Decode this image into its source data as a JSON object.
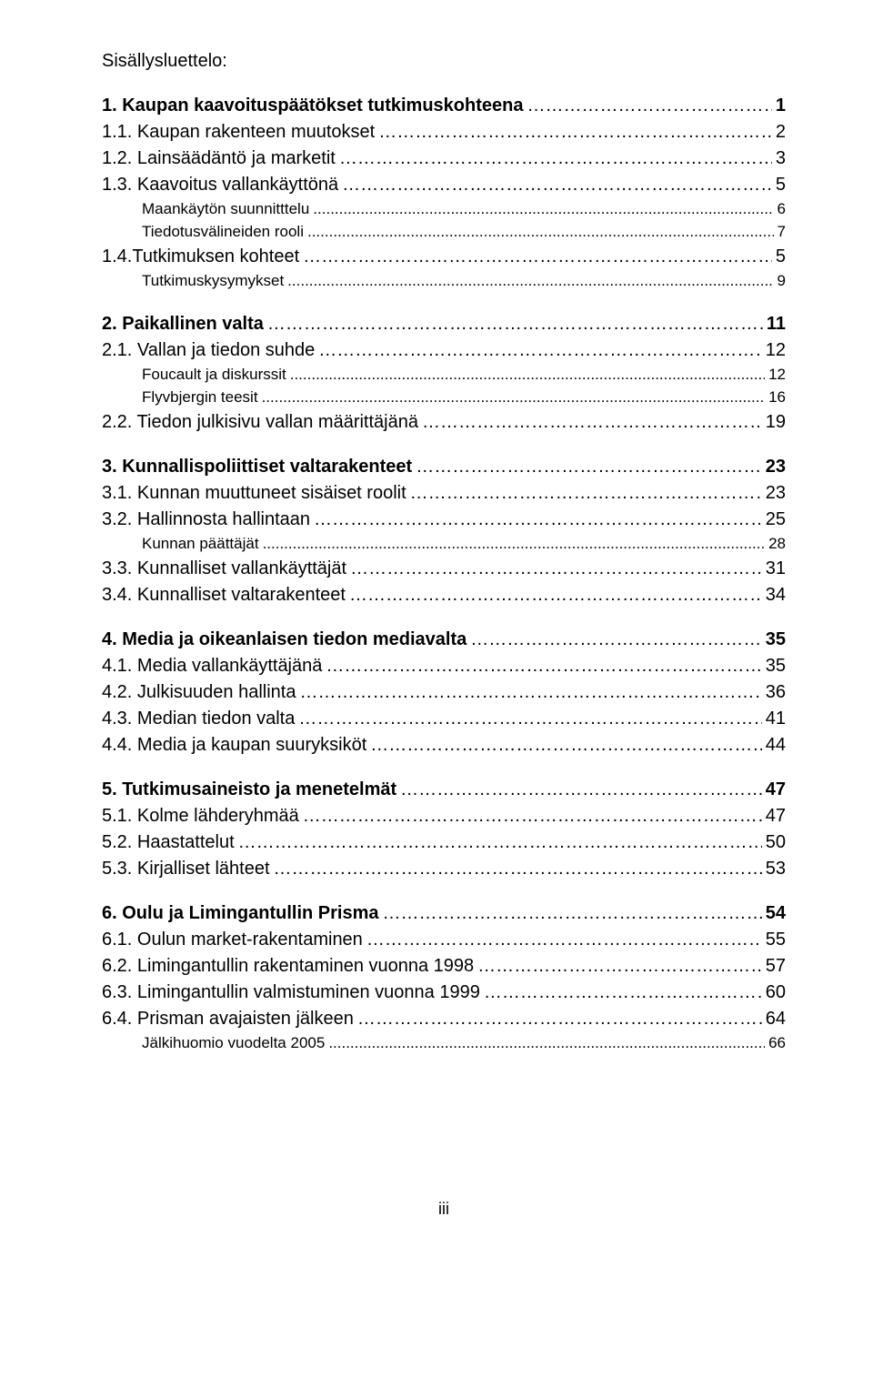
{
  "title": "Sisällysluettelo:",
  "footer": "iii",
  "lines": [
    {
      "label": "1. Kaupan kaavoituspäätökset tutkimuskohteena",
      "page": "1",
      "bold": true,
      "indent": 0,
      "leader": "ellipsis"
    },
    {
      "label": "1.1. Kaupan rakenteen muutokset",
      "page": "2",
      "bold": false,
      "indent": 0,
      "leader": "ellipsis"
    },
    {
      "label": "1.2. Lainsäädäntö ja marketit",
      "page": "3",
      "bold": false,
      "indent": 0,
      "leader": "ellipsis"
    },
    {
      "label": "1.3. Kaavoitus vallankäyttönä",
      "page": "5",
      "bold": false,
      "indent": 0,
      "leader": "ellipsis"
    },
    {
      "label": "Maankäytön suunnitttelu",
      "page": "6",
      "bold": false,
      "indent": 1,
      "sub": true,
      "leader": "dots"
    },
    {
      "label": "Tiedotusvälineiden rooli",
      "page": "7",
      "bold": false,
      "indent": 1,
      "sub": true,
      "leader": "dots"
    },
    {
      "label": "1.4.Tutkimuksen kohteet",
      "page": "5",
      "bold": false,
      "indent": 0,
      "leader": "ellipsis"
    },
    {
      "label": "Tutkimuskysymykset",
      "page": "9",
      "bold": false,
      "indent": 1,
      "sub": true,
      "leader": "dots"
    },
    {
      "gap": true
    },
    {
      "label": "2. Paikallinen valta",
      "page": "11",
      "bold": true,
      "indent": 0,
      "leader": "ellipsis"
    },
    {
      "label": "2.1. Vallan ja tiedon suhde",
      "page": "12",
      "bold": false,
      "indent": 0,
      "leader": "ellipsis"
    },
    {
      "label": "Foucault ja diskurssit",
      "page": "12",
      "bold": false,
      "indent": 1,
      "sub": true,
      "leader": "dots"
    },
    {
      "label": "Flyvbjergin teesit",
      "page": "16",
      "bold": false,
      "indent": 1,
      "sub": true,
      "leader": "dots"
    },
    {
      "label": "2.2. Tiedon julkisivu vallan määrittäjänä",
      "page": "19",
      "bold": false,
      "indent": 0,
      "leader": "ellipsis"
    },
    {
      "gap": true
    },
    {
      "label": "3. Kunnallispoliittiset valtarakenteet",
      "page": "23",
      "bold": true,
      "indent": 0,
      "leader": "ellipsis"
    },
    {
      "label": "3.1. Kunnan muuttuneet sisäiset roolit",
      "page": "23",
      "bold": false,
      "indent": 0,
      "leader": "ellipsis"
    },
    {
      "label": "3.2. Hallinnosta hallintaan",
      "page": "25",
      "bold": false,
      "indent": 0,
      "leader": "ellipsis"
    },
    {
      "label": "Kunnan päättäjät",
      "page": "28",
      "bold": false,
      "indent": 1,
      "sub": true,
      "leader": "dots"
    },
    {
      "label": "3.3. Kunnalliset vallankäyttäjät",
      "page": "31",
      "bold": false,
      "indent": 0,
      "leader": "ellipsis"
    },
    {
      "label": "3.4. Kunnalliset valtarakenteet",
      "page": "34",
      "bold": false,
      "indent": 0,
      "leader": "ellipsis"
    },
    {
      "gap": true
    },
    {
      "label": "4. Media ja oikeanlaisen tiedon mediavalta",
      "page": "35",
      "bold": true,
      "indent": 0,
      "leader": "ellipsis"
    },
    {
      "label": "4.1. Media vallankäyttäjänä",
      "page": "35",
      "bold": false,
      "indent": 0,
      "leader": "ellipsis"
    },
    {
      "label": "4.2. Julkisuuden hallinta",
      "page": "36",
      "bold": false,
      "indent": 0,
      "leader": "ellipsis"
    },
    {
      "label": "4.3. Median tiedon valta",
      "page": "41",
      "bold": false,
      "indent": 0,
      "leader": "ellipsis"
    },
    {
      "label": "4.4. Media ja kaupan suuryksiköt",
      "page": "44",
      "bold": false,
      "indent": 0,
      "leader": "ellipsis"
    },
    {
      "gap": true
    },
    {
      "label": "5. Tutkimusaineisto ja menetelmät",
      "page": "47",
      "bold": true,
      "indent": 0,
      "leader": "ellipsis"
    },
    {
      "label": "5.1. Kolme lähderyhmää",
      "page": "47",
      "bold": false,
      "indent": 0,
      "leader": "ellipsis"
    },
    {
      "label": "5.2. Haastattelut",
      "page": "50",
      "bold": false,
      "indent": 0,
      "leader": "ellipsis"
    },
    {
      "label": "5.3. Kirjalliset lähteet",
      "page": "53",
      "bold": false,
      "indent": 0,
      "leader": "ellipsis"
    },
    {
      "gap": true
    },
    {
      "label": "6. Oulu ja Limingantullin Prisma",
      "page": "54",
      "bold": true,
      "indent": 0,
      "leader": "ellipsis"
    },
    {
      "label": "6.1. Oulun market-rakentaminen",
      "page": "55",
      "bold": false,
      "indent": 0,
      "leader": "ellipsis"
    },
    {
      "label": "6.2. Limingantullin rakentaminen vuonna 1998",
      "page": "57",
      "bold": false,
      "indent": 0,
      "leader": "ellipsis"
    },
    {
      "label": "6.3. Limingantullin valmistuminen vuonna 1999",
      "page": "60",
      "bold": false,
      "indent": 0,
      "leader": "ellipsis"
    },
    {
      "label": "6.4. Prisman avajaisten jälkeen",
      "page": "64",
      "bold": false,
      "indent": 0,
      "leader": "ellipsis"
    },
    {
      "label": "Jälkihuomio vuodelta 2005",
      "page": "66",
      "bold": false,
      "indent": 1,
      "sub": true,
      "leader": "dots"
    }
  ]
}
